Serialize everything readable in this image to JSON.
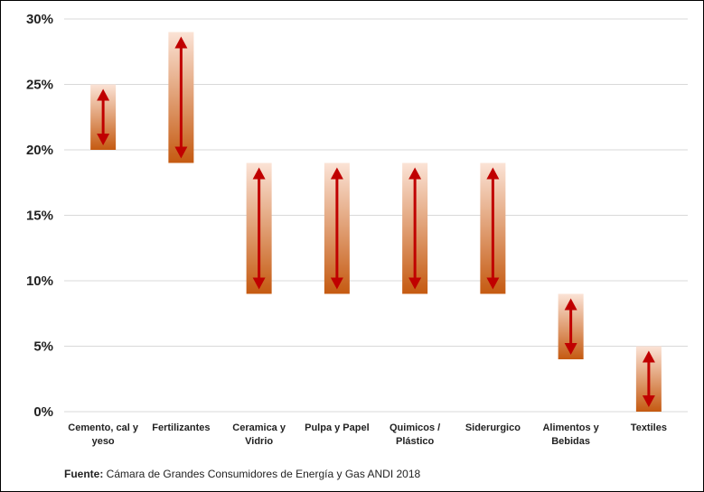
{
  "chart_data": {
    "type": "floating-bar",
    "categories": [
      {
        "line1": "Cemento, cal y",
        "line2": "yeso"
      },
      {
        "line1": "Fertilizantes",
        "line2": ""
      },
      {
        "line1": "Ceramica y",
        "line2": "Vidrio"
      },
      {
        "line1": "Pulpa y Papel",
        "line2": ""
      },
      {
        "line1": "Quimicos /",
        "line2": "Plástico"
      },
      {
        "line1": "Siderurgico",
        "line2": ""
      },
      {
        "line1": "Alimentos y",
        "line2": "Bebidas"
      },
      {
        "line1": "Textiles",
        "line2": ""
      }
    ],
    "ranges": [
      {
        "low": 20,
        "high": 25
      },
      {
        "low": 19,
        "high": 29
      },
      {
        "low": 9,
        "high": 19
      },
      {
        "low": 9,
        "high": 19
      },
      {
        "low": 9,
        "high": 19
      },
      {
        "low": 9,
        "high": 19
      },
      {
        "low": 4,
        "high": 9
      },
      {
        "low": 0,
        "high": 5
      }
    ],
    "ylim": [
      0,
      30
    ],
    "yticks": [
      {
        "value": 0,
        "label": "0%"
      },
      {
        "value": 5,
        "label": "5%"
      },
      {
        "value": 10,
        "label": "10%"
      },
      {
        "value": 15,
        "label": "15%"
      },
      {
        "value": 20,
        "label": "20%"
      },
      {
        "value": 25,
        "label": "25%"
      },
      {
        "value": 30,
        "label": "30%"
      }
    ],
    "grid": true,
    "colors": {
      "bar_top": "#fbe3d6",
      "bar_bottom": "#c55a11",
      "arrow": "#c00000",
      "grid": "#d9d9d9"
    }
  },
  "source": {
    "label": "Fuente:",
    "text": " Cámara de Grandes Consumidores de Energía y Gas ANDI 2018"
  }
}
